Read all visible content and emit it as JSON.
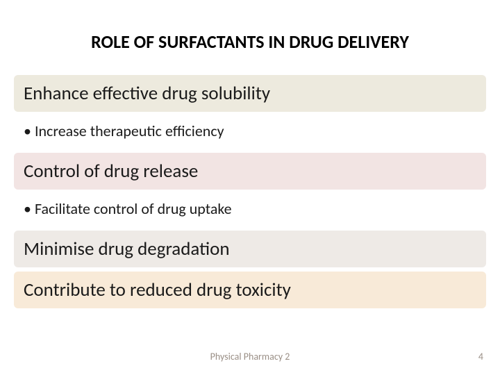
{
  "title": {
    "text": "ROLE OF SURFACTANTS IN DRUG DELIVERY",
    "fontsize": 26,
    "color": "#000000"
  },
  "rows": [
    {
      "kind": "heading",
      "text": "Enhance effective drug solubility",
      "bg": "#edeade",
      "fontsize": 27
    },
    {
      "kind": "bullet",
      "text": "Increase therapeutic efficiency",
      "bg": "#ffffff",
      "fontsize": 22
    },
    {
      "kind": "heading",
      "text": "Control of drug release",
      "bg": "#f2e4e3",
      "fontsize": 27
    },
    {
      "kind": "bullet",
      "text": "Facilitate control of drug uptake",
      "bg": "#ffffff",
      "fontsize": 22
    },
    {
      "kind": "heading",
      "text": "Minimise drug degradation",
      "bg": "#eeeae6",
      "fontsize": 27
    },
    {
      "kind": "heading",
      "text": "Contribute to reduced drug toxicity",
      "bg": "#f8ead8",
      "fontsize": 27
    }
  ],
  "footer": {
    "text": "Physical Pharmacy 2",
    "color": "#9a8f86",
    "fontsize": 14
  },
  "page_number": {
    "text": "4",
    "color": "#9a8f86",
    "fontsize": 14
  },
  "layout": {
    "slide_width": 720,
    "slide_height": 540,
    "block_radius": 6,
    "block_margin_x": 20,
    "block_gap": 6
  }
}
